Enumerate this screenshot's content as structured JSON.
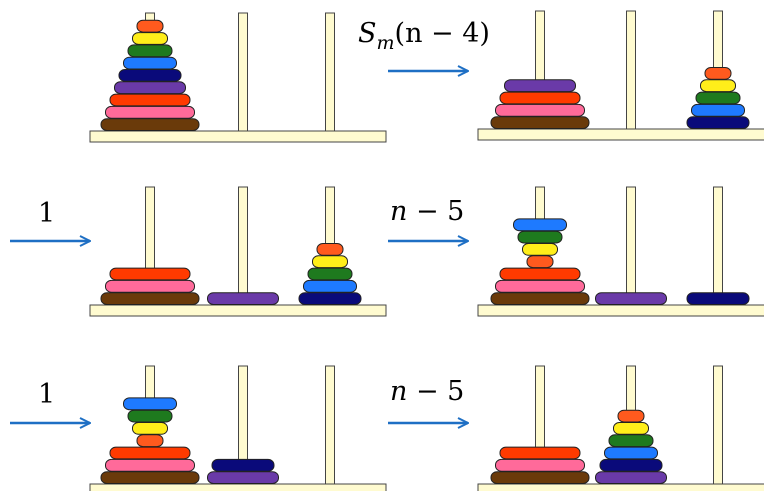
{
  "colors": {
    "peg": "#fffbd0",
    "peg_stroke": "#444444",
    "arrow": "#1e6fc4",
    "disk_stroke": "#222222",
    "disks": {
      "1": "#ff5a1e",
      "2": "#ffee1a",
      "3": "#1e7a1e",
      "4": "#1e7aff",
      "5": "#0a0a7a",
      "6": "#6a3aa8",
      "7": "#ff3a00",
      "8": "#ff6a9a",
      "9": "#6a3a0a"
    }
  },
  "panels": [
    {
      "id": "p1",
      "pegs": [
        [
          9,
          8,
          7,
          6,
          5,
          4,
          3,
          2,
          1
        ],
        [],
        []
      ]
    },
    {
      "id": "p2",
      "pegs": [
        [
          9,
          8,
          7,
          6
        ],
        [],
        [
          5,
          4,
          3,
          2,
          1
        ]
      ]
    },
    {
      "id": "p3",
      "pegs": [
        [
          9,
          8,
          7
        ],
        [
          6
        ],
        [
          5,
          4,
          3,
          2,
          1
        ]
      ]
    },
    {
      "id": "p4",
      "pegs": [
        [
          9,
          8,
          7,
          1,
          2,
          3,
          4
        ],
        [
          6
        ],
        [
          5
        ]
      ]
    },
    {
      "id": "p5",
      "pegs": [
        [
          9,
          8,
          7,
          1,
          2,
          3,
          4
        ],
        [
          6,
          5
        ],
        []
      ]
    },
    {
      "id": "p6",
      "pegs": [
        [
          9,
          8,
          7
        ],
        [
          6,
          5,
          4,
          3,
          2,
          1
        ],
        []
      ]
    }
  ],
  "transitions": [
    {
      "label": "S_m(n − 4)",
      "text": "S",
      "sub": "m",
      "rest": "(n − 4)"
    },
    {
      "label": "1"
    },
    {
      "label": "n − 5",
      "italic_part": "n",
      "rest": " − 5"
    },
    {
      "label": "1"
    },
    {
      "label": "n − 5",
      "italic_part": "n",
      "rest": " − 5"
    }
  ]
}
